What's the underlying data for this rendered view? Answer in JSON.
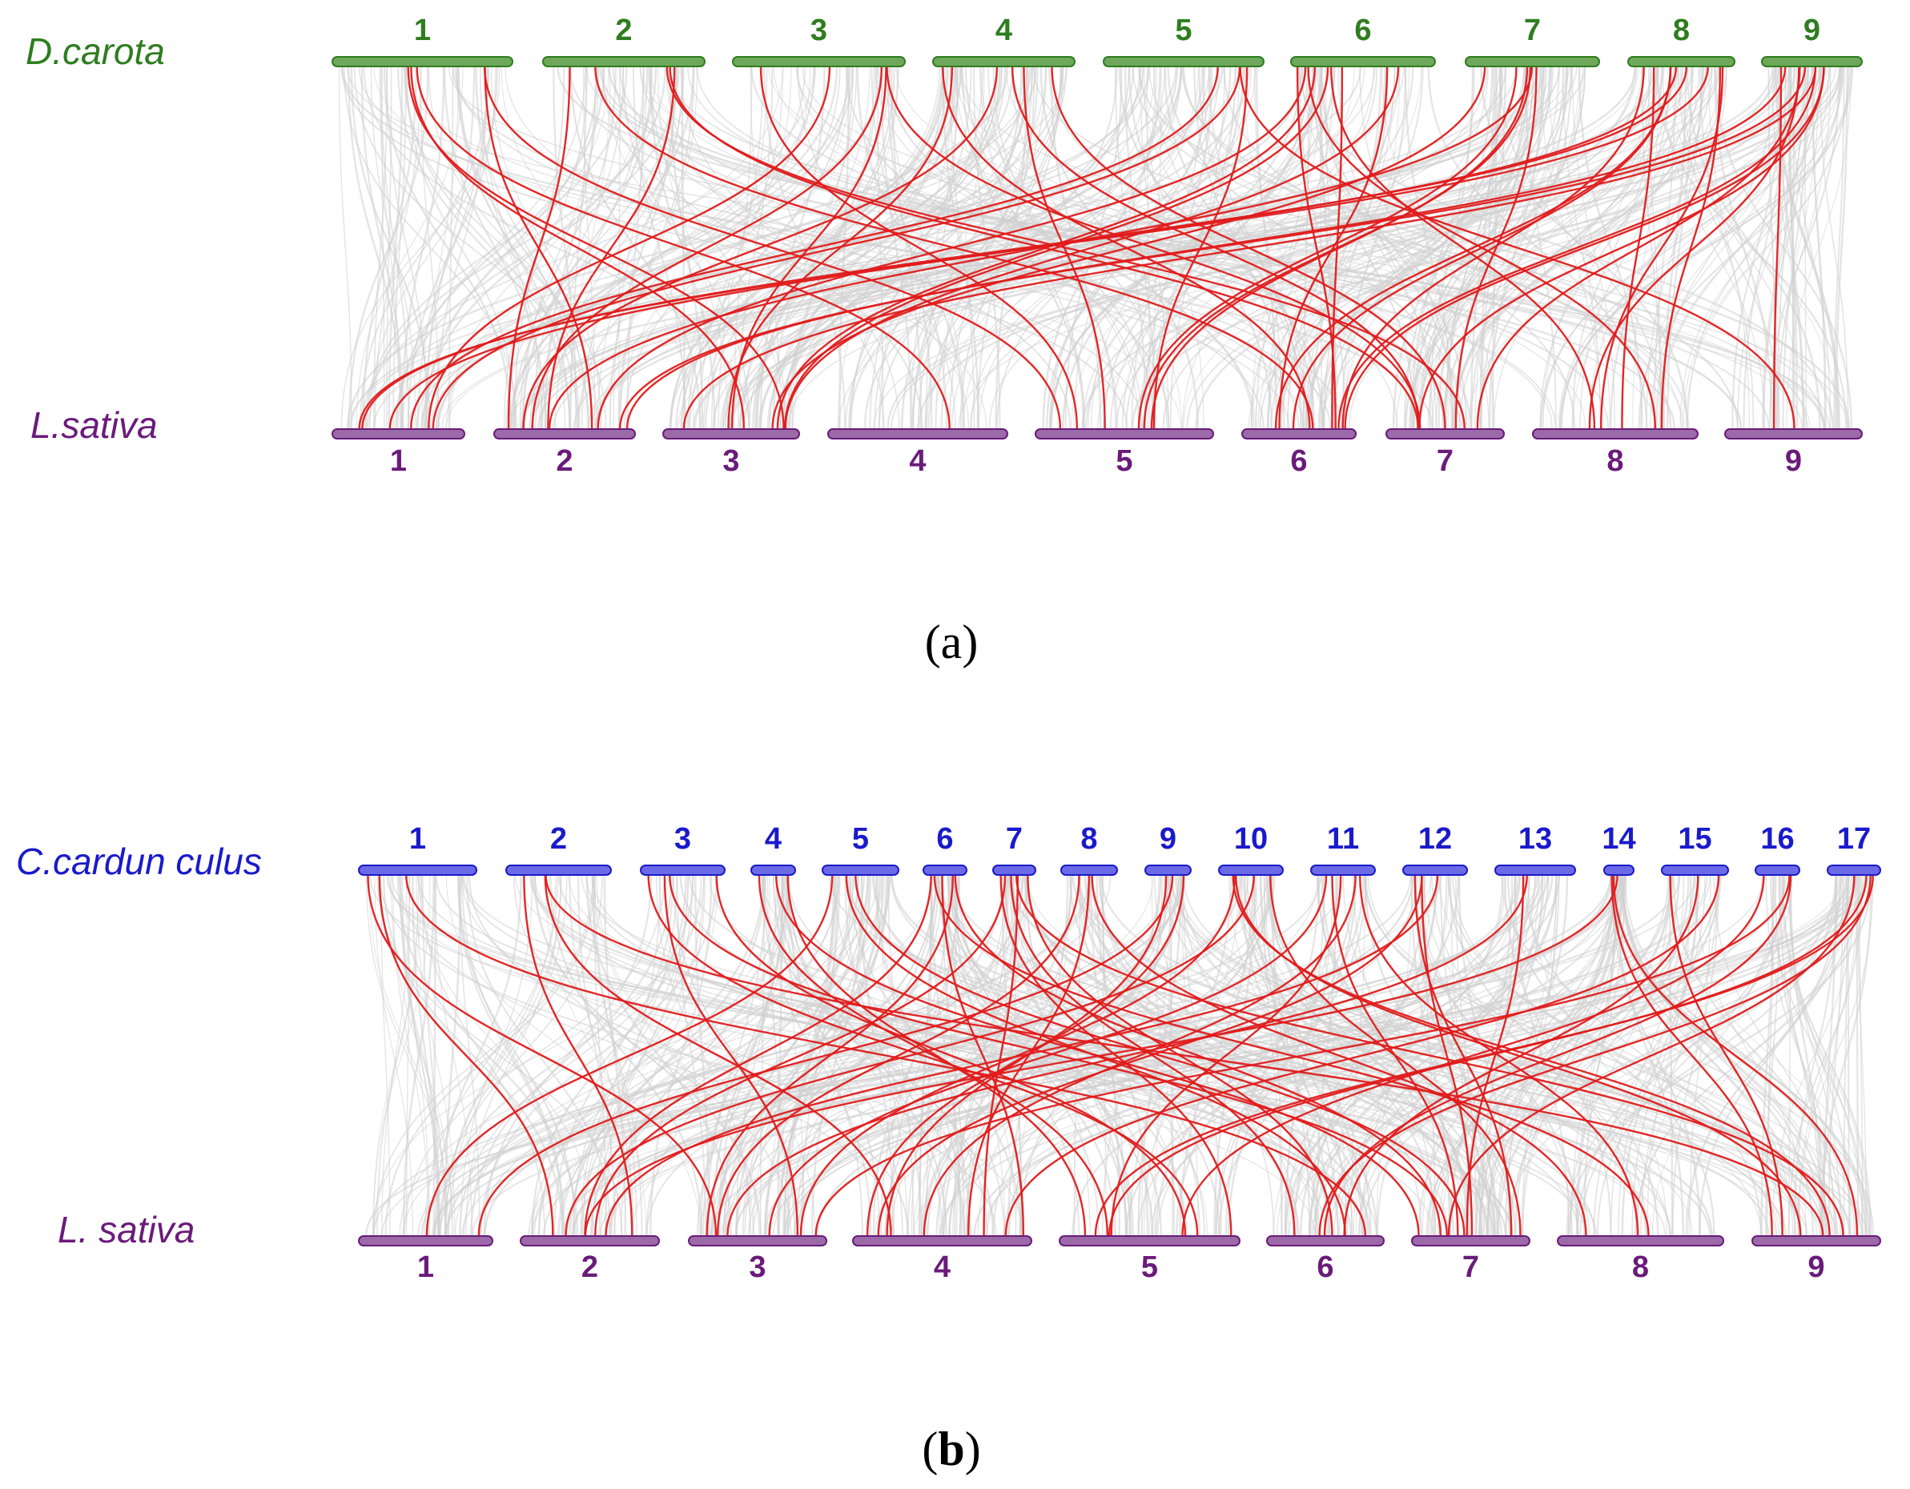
{
  "colors": {
    "green": "#2e7d1f",
    "green_bar": "#6fa85a",
    "purple": "#6a1b7a",
    "purple_bar": "#9c6aa8",
    "blue": "#1a1acc",
    "blue_bar": "#6a6ae6",
    "grey_link": "#cfcfcf",
    "red_link": "#e01b1b"
  },
  "panels": [
    {
      "id": "a",
      "label": "(a)",
      "top": {
        "species": "D.carota",
        "color": "#2e7d1f",
        "chromosomes": [
          "1",
          "2",
          "3",
          "4",
          "5",
          "6",
          "7",
          "8",
          "9"
        ]
      },
      "bottom": {
        "species": "L.sativa",
        "color": "#6a1b7a",
        "chromosomes": [
          "1",
          "2",
          "3",
          "4",
          "5",
          "6",
          "7",
          "8",
          "9"
        ]
      }
    },
    {
      "id": "b",
      "label_open": "(",
      "label_letter": "b",
      "label_close": ")",
      "top": {
        "species": "C.cardun culus",
        "color": "#1a1acc",
        "chromosomes": [
          "1",
          "2",
          "3",
          "4",
          "5",
          "6",
          "7",
          "8",
          "9",
          "10",
          "11",
          "12",
          "13",
          "14",
          "15",
          "16",
          "17"
        ]
      },
      "bottom": {
        "species": "L. sativa",
        "color": "#6a1b7a",
        "chromosomes": [
          "1",
          "2",
          "3",
          "4",
          "5",
          "6",
          "7",
          "8",
          "9"
        ]
      }
    }
  ]
}
